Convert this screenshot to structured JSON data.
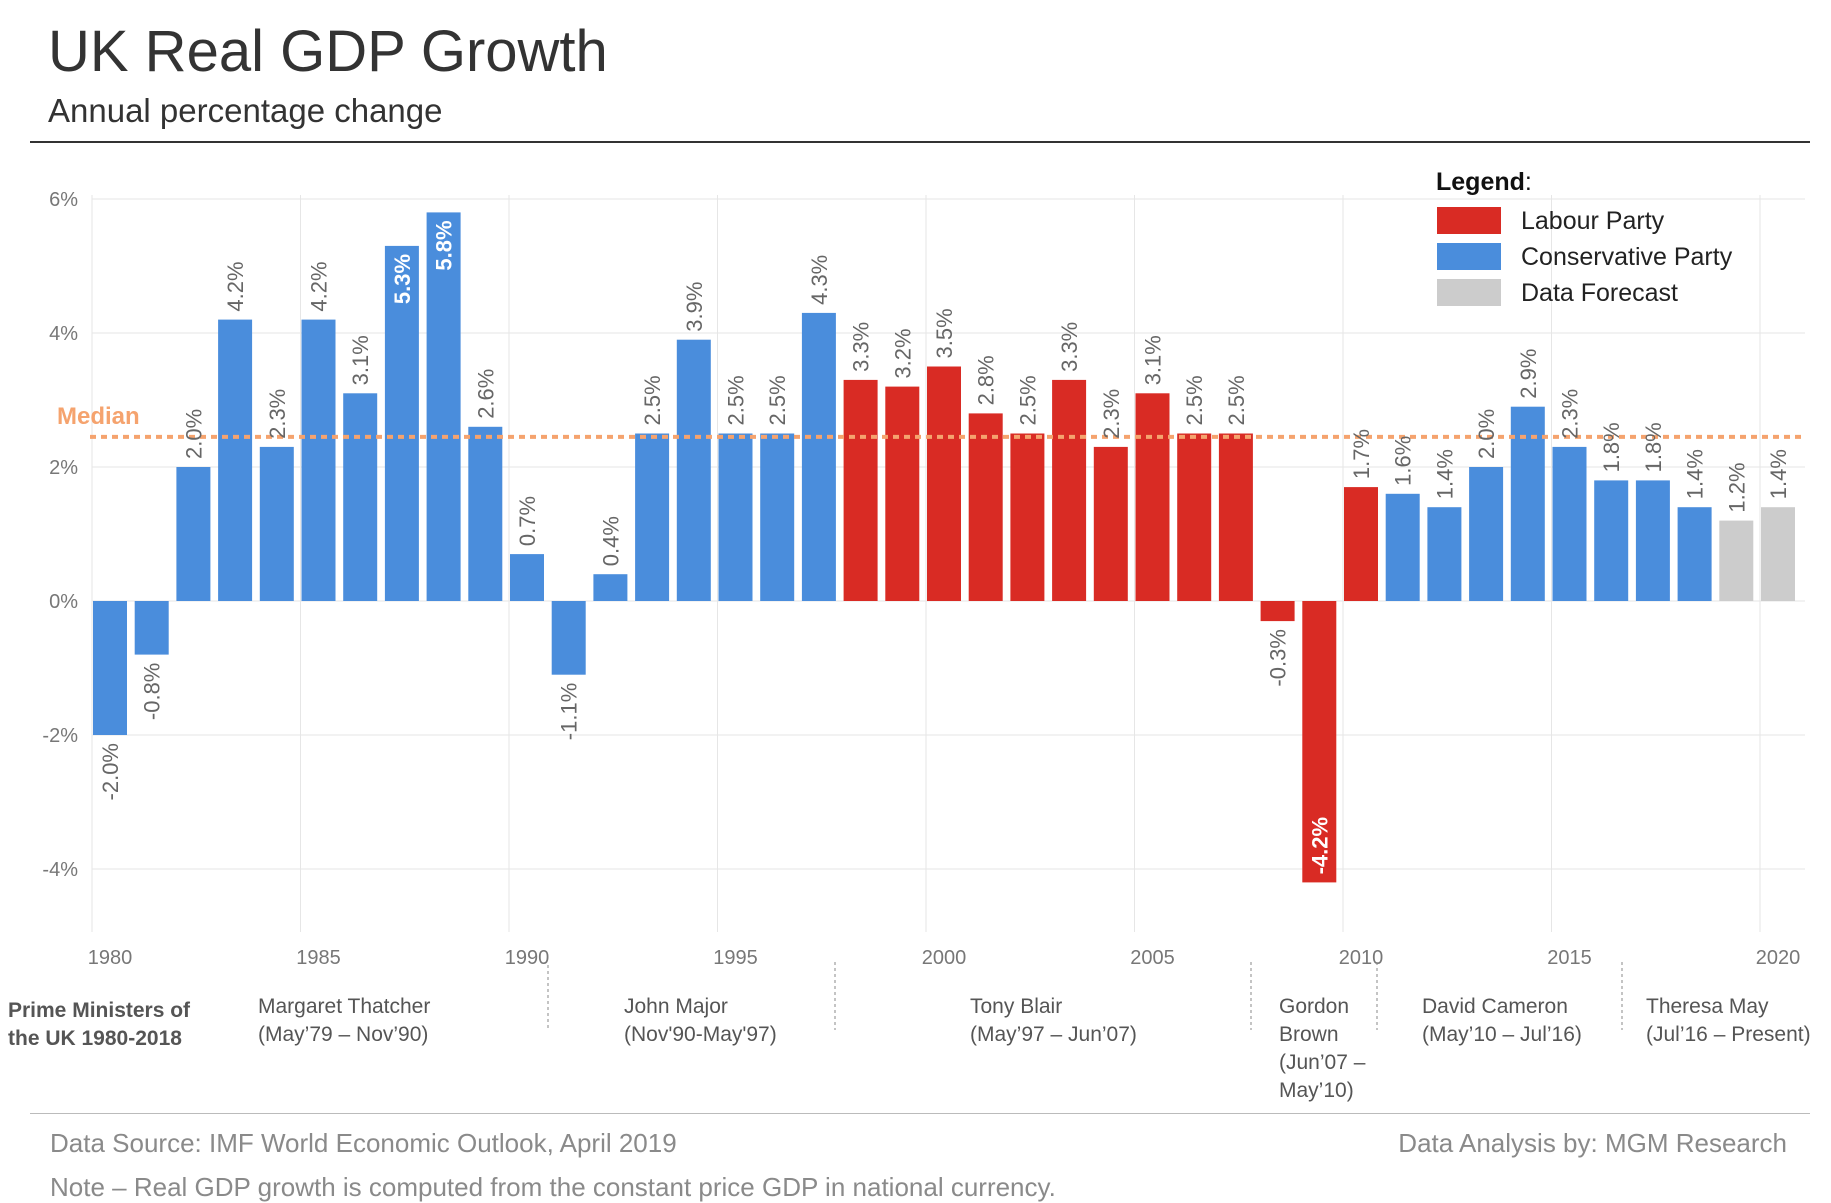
{
  "title": "UK Real GDP Growth",
  "subtitle": "Annual percentage change",
  "source": "Data Source: IMF World Economic Outlook, April 2019",
  "analysis": "Data Analysis by: MGM Research",
  "note": "Note – Real GDP growth is computed from the constant price GDP in national currency.",
  "colors": {
    "labour": "#d92b24",
    "conservative": "#4a8ddc",
    "forecast": "#cccccc",
    "median": "#f5a36e",
    "grid": "#e6e6e6",
    "axis_text": "#777777"
  },
  "legend": {
    "title": "Legend",
    "items": [
      {
        "label": "Labour Party",
        "key": "labour"
      },
      {
        "label": "Conservative Party",
        "key": "conservative"
      },
      {
        "label": "Data Forecast",
        "key": "forecast"
      }
    ]
  },
  "prime_ministers": {
    "heading": [
      "Prime Ministers of",
      "the UK 1980-2018"
    ],
    "items": [
      {
        "lines": [
          "Margaret Thatcher",
          "(May’79 – Nov’90)"
        ]
      },
      {
        "lines": [
          "John Major",
          "(Nov'90-May'97)"
        ]
      },
      {
        "lines": [
          "Tony Blair",
          "(May’97 – Jun’07)"
        ]
      },
      {
        "lines": [
          "Gordon",
          "Brown",
          "(Jun’07 –",
          "May’10)"
        ]
      },
      {
        "lines": [
          "David Cameron",
          "(May’10 – Jul’16)"
        ]
      },
      {
        "lines": [
          "Theresa May",
          "(Jul’16 – Present)"
        ]
      }
    ]
  },
  "chart_data": {
    "type": "bar",
    "title": "UK Real GDP Growth",
    "subtitle": "Annual percentage change",
    "xlabel": "",
    "ylabel": "",
    "ylim": [
      -4.9,
      6
    ],
    "yticks": [
      -4,
      -2,
      0,
      2,
      4,
      6
    ],
    "ytick_labels": [
      "-4%",
      "-2%",
      "0%",
      "2%",
      "4%",
      "6%"
    ],
    "xticks": [
      1980,
      1985,
      1990,
      1995,
      2000,
      2005,
      2010,
      2015,
      2020
    ],
    "grid": true,
    "legend_position": "top-right",
    "median": {
      "label": "Median",
      "value": 2.45
    },
    "categories": [
      1980,
      1981,
      1982,
      1983,
      1984,
      1985,
      1986,
      1987,
      1988,
      1989,
      1990,
      1991,
      1992,
      1993,
      1994,
      1995,
      1996,
      1997,
      1998,
      1999,
      2000,
      2001,
      2002,
      2003,
      2004,
      2005,
      2006,
      2007,
      2008,
      2009,
      2010,
      2011,
      2012,
      2013,
      2014,
      2015,
      2016,
      2017,
      2018,
      2019,
      2020
    ],
    "values": [
      -2.0,
      -0.8,
      2.0,
      4.2,
      2.3,
      4.2,
      3.1,
      5.3,
      5.8,
      2.6,
      0.7,
      -1.1,
      0.4,
      2.5,
      3.9,
      2.5,
      2.5,
      4.3,
      3.3,
      3.2,
      3.5,
      2.8,
      2.5,
      3.3,
      2.3,
      3.1,
      2.5,
      2.5,
      -0.3,
      -4.2,
      1.7,
      1.6,
      1.4,
      2.0,
      2.9,
      2.3,
      1.8,
      1.8,
      1.4,
      1.2,
      1.4
    ],
    "labels": [
      "-2.0%",
      "-0.8%",
      "2.0%",
      "4.2%",
      "2.3%",
      "4.2%",
      "3.1%",
      "5.3%",
      "5.8%",
      "2.6%",
      "0.7%",
      "-1.1%",
      "0.4%",
      "2.5%",
      "3.9%",
      "2.5%",
      "2.5%",
      "4.3%",
      "3.3%",
      "3.2%",
      "3.5%",
      "2.8%",
      "2.5%",
      "3.3%",
      "2.3%",
      "3.1%",
      "2.5%",
      "2.5%",
      "-0.3%",
      "-4.2%",
      "1.7%",
      "1.6%",
      "1.4%",
      "2.0%",
      "2.9%",
      "2.3%",
      "1.8%",
      "1.8%",
      "1.4%",
      "1.2%",
      "1.4%"
    ],
    "party": [
      "conservative",
      "conservative",
      "conservative",
      "conservative",
      "conservative",
      "conservative",
      "conservative",
      "conservative",
      "conservative",
      "conservative",
      "conservative",
      "conservative",
      "conservative",
      "conservative",
      "conservative",
      "conservative",
      "conservative",
      "conservative",
      "labour",
      "labour",
      "labour",
      "labour",
      "labour",
      "labour",
      "labour",
      "labour",
      "labour",
      "labour",
      "labour",
      "labour",
      "labour",
      "conservative",
      "conservative",
      "conservative",
      "conservative",
      "conservative",
      "conservative",
      "conservative",
      "conservative",
      "forecast",
      "forecast"
    ],
    "label_inside": [
      false,
      false,
      false,
      false,
      false,
      false,
      false,
      true,
      true,
      false,
      false,
      false,
      false,
      false,
      false,
      false,
      false,
      false,
      false,
      false,
      false,
      false,
      false,
      false,
      false,
      false,
      false,
      false,
      false,
      true,
      false,
      false,
      false,
      false,
      false,
      false,
      false,
      false,
      false,
      false,
      false
    ]
  }
}
